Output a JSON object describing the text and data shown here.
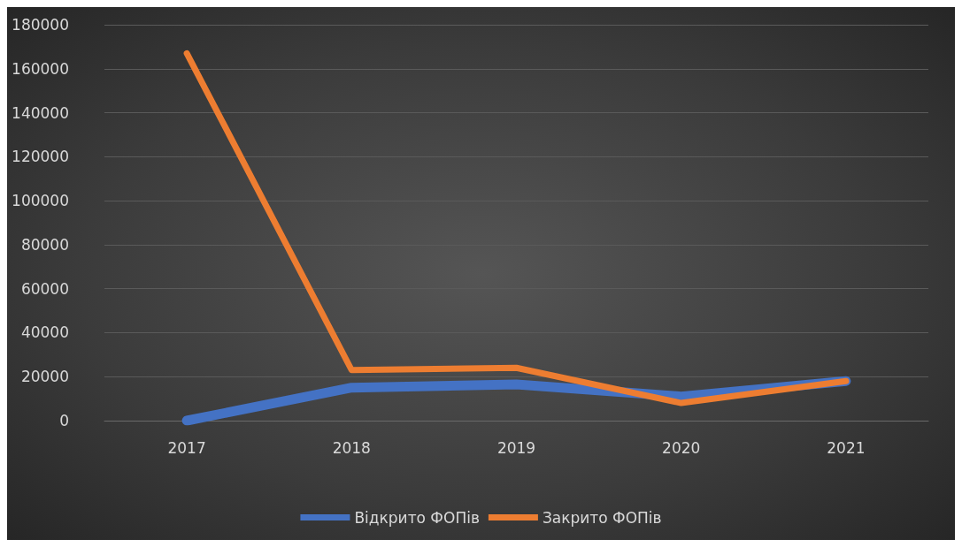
{
  "chart_data": {
    "type": "line",
    "categories": [
      "2017",
      "2018",
      "2019",
      "2020",
      "2021"
    ],
    "series": [
      {
        "name": "Відкрито ФОПів",
        "color": "#4472c4",
        "values": [
          0,
          15000,
          16500,
          11000,
          18000
        ]
      },
      {
        "name": "Закрито ФОПів",
        "color": "#ed7d31",
        "values": [
          167000,
          23000,
          24000,
          8000,
          18000
        ]
      }
    ],
    "ylim": [
      0,
      180000
    ],
    "yticks": [
      0,
      20000,
      40000,
      60000,
      80000,
      100000,
      120000,
      140000,
      160000,
      180000
    ],
    "grid": "y",
    "legend": "bottom",
    "marker": "none",
    "line_style": "solid"
  }
}
